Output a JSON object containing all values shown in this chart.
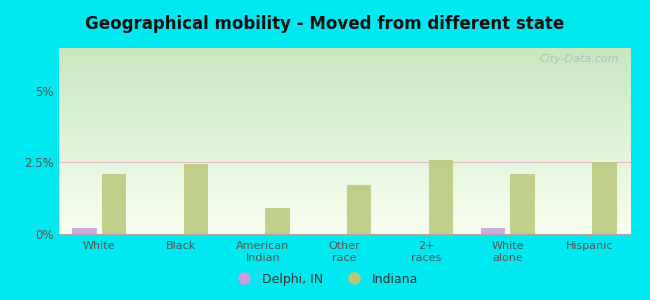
{
  "title": "Geographical mobility - Moved from different state",
  "categories": [
    "White",
    "Black",
    "American\nIndian",
    "Other\nrace",
    "2+\nraces",
    "White\nalone",
    "Hispanic"
  ],
  "delphi_values": [
    0.22,
    0.0,
    0.0,
    0.0,
    0.0,
    0.22,
    0.0
  ],
  "indiana_values": [
    2.1,
    2.45,
    0.9,
    1.7,
    2.6,
    2.1,
    2.5
  ],
  "delphi_color": "#c9a0dc",
  "indiana_color": "#b8c87a",
  "bar_width": 0.3,
  "ylim": [
    0,
    6.5
  ],
  "yticks": [
    0,
    2.5,
    5.0
  ],
  "ytick_labels": [
    "0%",
    "2.5%",
    "5%"
  ],
  "grid_color_25": "#e8b8c8",
  "grid_color_5": "#d8e8c0",
  "outer_bg": "#00e8f0",
  "legend_delphi": "Delphi, IN",
  "legend_indiana": "Indiana",
  "watermark": "City-Data.com",
  "bg_top": "#c8e8c0",
  "bg_bottom": "#f8fff0"
}
